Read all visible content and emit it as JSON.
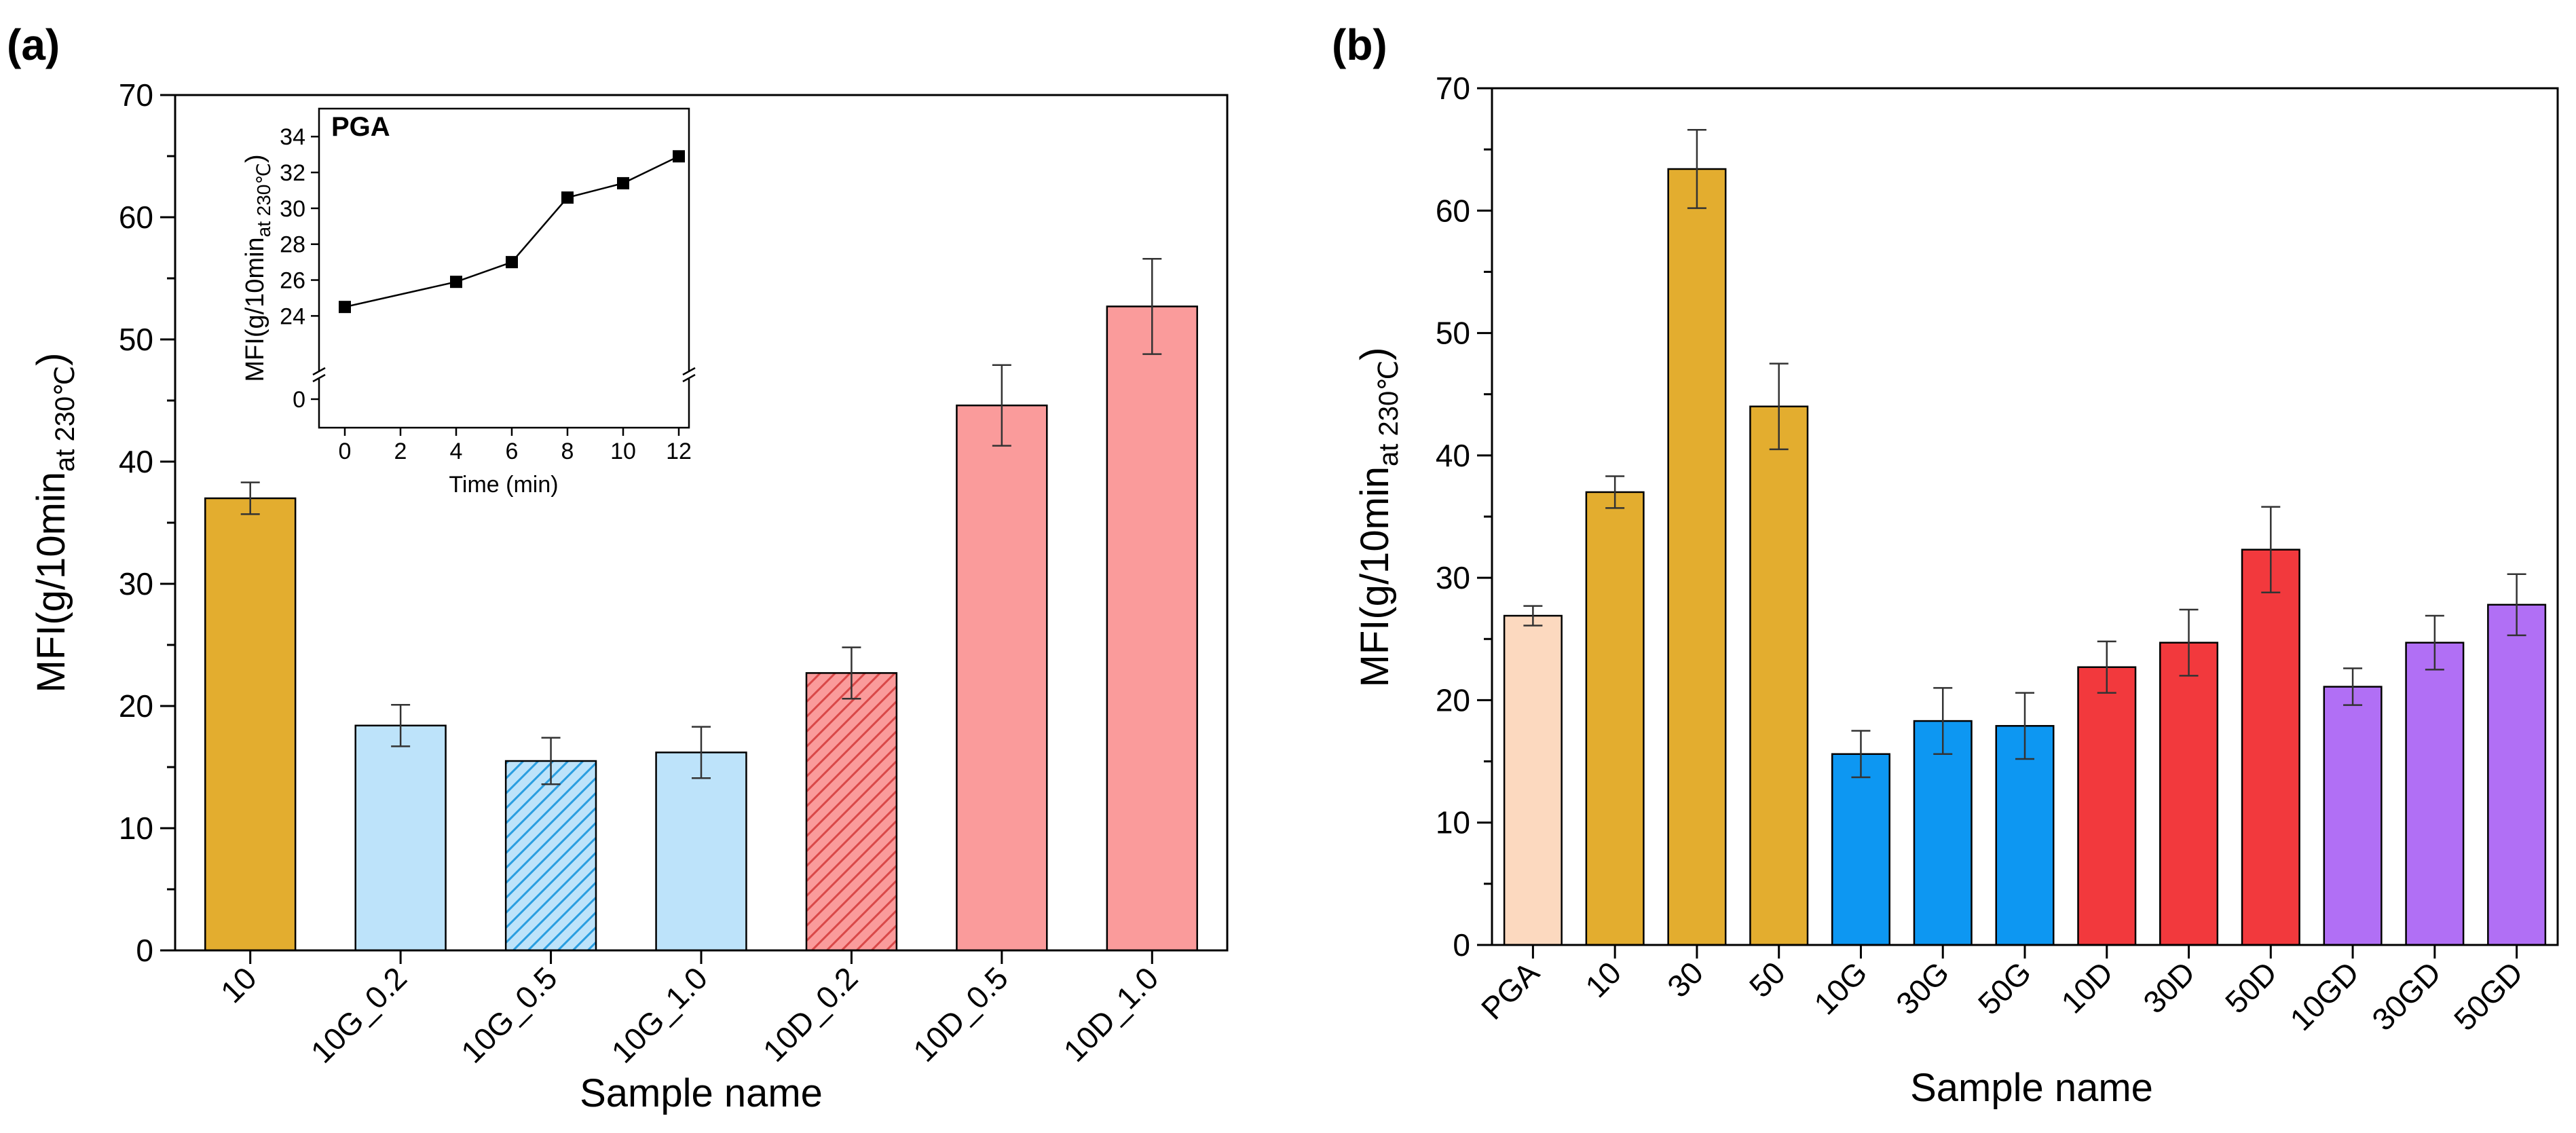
{
  "chart_data": [
    {
      "panel": "(a)",
      "type": "bar",
      "xlabel": "Sample name",
      "ylabel_main": "MFI(g/10min",
      "ylabel_sub": "at 230℃",
      "ylabel_close": ")",
      "ylim": [
        0,
        70
      ],
      "yticks": [
        0,
        10,
        20,
        30,
        40,
        50,
        60,
        70
      ],
      "categories": [
        "10",
        "10G_0.2",
        "10G_0.5",
        "10G_1.0",
        "10D_0.2",
        "10D_0.5",
        "10D_1.0"
      ],
      "values": [
        37.0,
        18.4,
        15.5,
        16.2,
        22.7,
        44.6,
        52.7
      ],
      "errors": [
        1.3,
        1.7,
        1.9,
        2.1,
        2.1,
        3.3,
        3.9
      ],
      "colors": [
        "#e3ad2f",
        "#bde3fa",
        "#bde3fa",
        "#bde3fa",
        "#fa9b9b",
        "#fa9b9b",
        "#fa9b9b"
      ],
      "hatched": [
        false,
        false,
        true,
        false,
        true,
        false,
        false
      ],
      "inset": {
        "type": "line",
        "title": "PGA",
        "xlabel": "Time (min)",
        "ylabel_main": "MFI(g/10min",
        "ylabel_sub": "at 230℃",
        "ylabel_close": ")",
        "x": [
          0,
          2,
          4,
          6,
          8,
          10,
          12
        ],
        "points_x": [
          0,
          4,
          6,
          8,
          10,
          12
        ],
        "points_y": [
          24.5,
          25.9,
          27.0,
          30.6,
          31.4,
          32.9
        ],
        "yticks": [
          "0",
          "24",
          "26",
          "28",
          "30",
          "32",
          "34"
        ],
        "ylim_upper": [
          22.5,
          34.5
        ],
        "axis_break": true
      }
    },
    {
      "panel": "(b)",
      "type": "bar",
      "xlabel": "Sample name",
      "ylabel_main": "MFI(g/10min",
      "ylabel_sub": "at 230℃",
      "ylabel_close": ")",
      "ylim": [
        0,
        70
      ],
      "yticks": [
        0,
        10,
        20,
        30,
        40,
        50,
        60,
        70
      ],
      "categories": [
        "PGA",
        "10",
        "30",
        "50",
        "10G",
        "30G",
        "50G",
        "10D",
        "30D",
        "50D",
        "10GD",
        "30GD",
        "50GD"
      ],
      "values": [
        26.9,
        37.0,
        63.4,
        44.0,
        15.6,
        18.3,
        17.9,
        22.7,
        24.7,
        32.3,
        21.1,
        24.7,
        27.8
      ],
      "errors": [
        0.8,
        1.3,
        3.2,
        3.5,
        1.9,
        2.7,
        2.7,
        2.1,
        2.7,
        3.5,
        1.5,
        2.2,
        2.5
      ],
      "colors": [
        "#fcd9bf",
        "#e3ad2f",
        "#e3ad2f",
        "#e3ad2f",
        "#0d97f2",
        "#0d97f2",
        "#0d97f2",
        "#f2393d",
        "#f2393d",
        "#f2393d",
        "#b16ff5",
        "#b16ff5",
        "#b16ff5"
      ]
    }
  ]
}
